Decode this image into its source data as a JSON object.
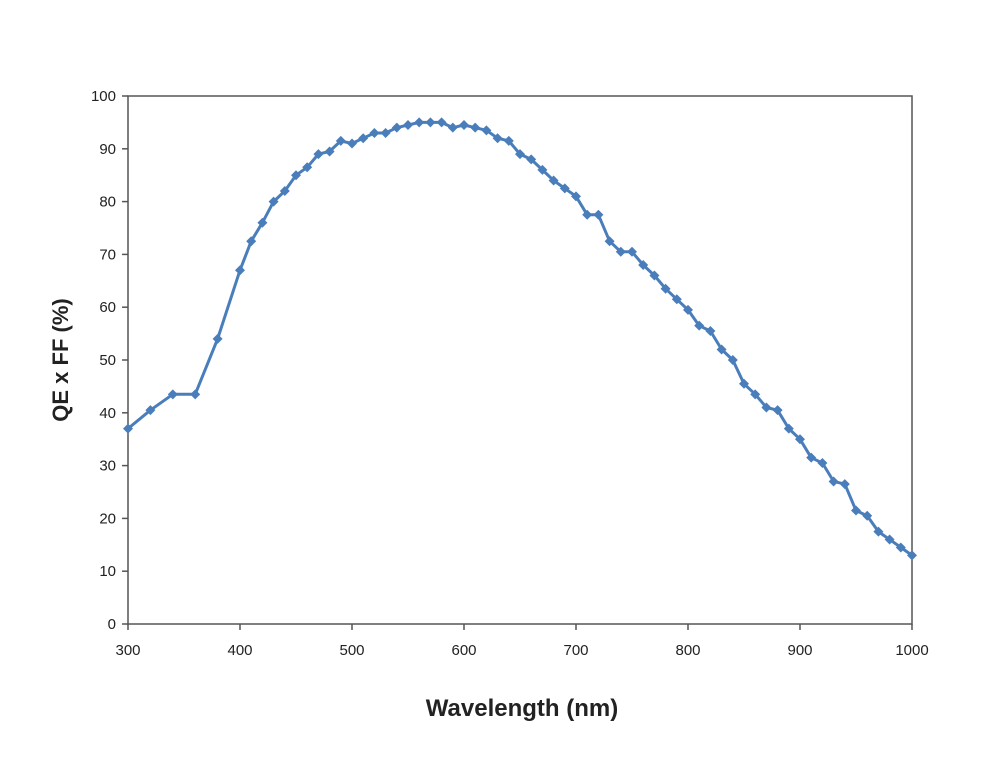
{
  "chart_data": {
    "type": "line",
    "xlabel": "Wavelength (nm)",
    "ylabel": "QE x FF (%)",
    "xlim": [
      300,
      1000
    ],
    "ylim": [
      0,
      100
    ],
    "xticks": [
      300,
      400,
      500,
      600,
      700,
      800,
      900,
      1000
    ],
    "yticks": [
      0,
      10,
      20,
      30,
      40,
      50,
      60,
      70,
      80,
      90,
      100
    ],
    "grid": false,
    "legend": "none",
    "line_color": "#4a7ebb",
    "series": [
      {
        "x": [
          300,
          320,
          340,
          360,
          380,
          400,
          410,
          420,
          430,
          440,
          450,
          460,
          470,
          480,
          490,
          500,
          510,
          520,
          530,
          540,
          550,
          560,
          570,
          580,
          590,
          600,
          610,
          620,
          630,
          640,
          650,
          660,
          670,
          680,
          690,
          700,
          710,
          720,
          730,
          740,
          750,
          760,
          770,
          780,
          790,
          800,
          810,
          820,
          830,
          840,
          850,
          860,
          870,
          880,
          890,
          900,
          910,
          920,
          930,
          940,
          950,
          960,
          970,
          980,
          990,
          1000
        ],
        "values": [
          37,
          40.5,
          43.5,
          43.5,
          54,
          67,
          72.5,
          76,
          80,
          82,
          85,
          86.5,
          89,
          89.5,
          91.5,
          91,
          92,
          93,
          93,
          94,
          94.5,
          95,
          95,
          95,
          94,
          94.5,
          94,
          93.5,
          92,
          91.5,
          89,
          88,
          86,
          84,
          82.5,
          81,
          77.5,
          77.5,
          72.5,
          70.5,
          70.5,
          68,
          66,
          63.5,
          61.5,
          59.5,
          56.5,
          55.5,
          52,
          50,
          45.5,
          43.5,
          41,
          40.5,
          37,
          35,
          31.5,
          30.5,
          27,
          26.5,
          21.5,
          20.5,
          17.5,
          16,
          14.5,
          13
        ]
      }
    ]
  }
}
